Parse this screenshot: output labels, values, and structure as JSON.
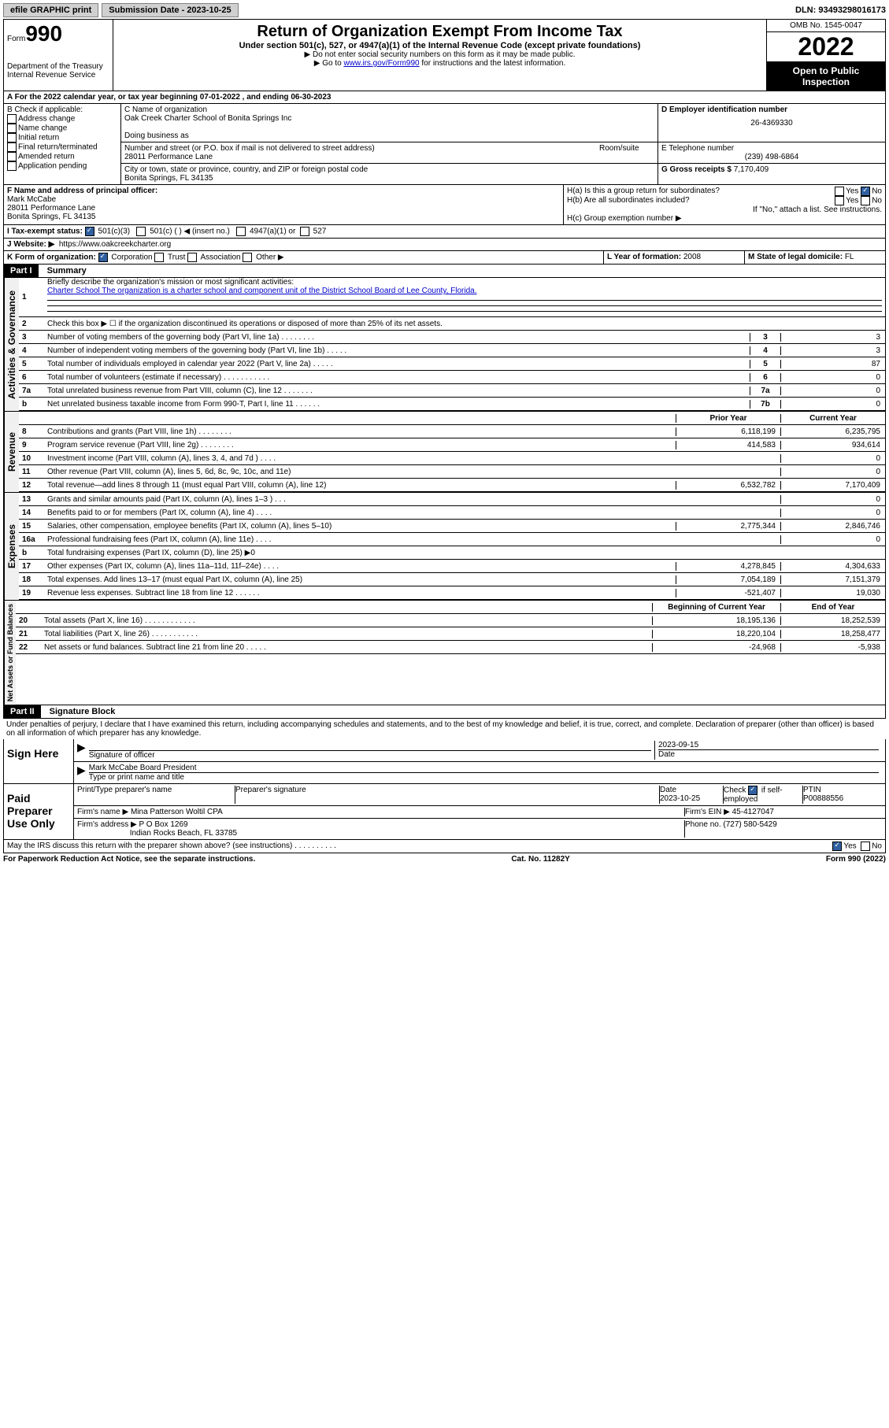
{
  "top": {
    "efile": "efile GRAPHIC print",
    "sub_label": "Submission Date - 2023-10-25",
    "dln": "DLN: 93493298016173"
  },
  "header": {
    "form_label": "Form",
    "form_num": "990",
    "dept": "Department of the Treasury Internal Revenue Service",
    "title": "Return of Organization Exempt From Income Tax",
    "sub": "Under section 501(c), 527, or 4947(a)(1) of the Internal Revenue Code (except private foundations)",
    "note1": "▶ Do not enter social security numbers on this form as it may be made public.",
    "note2_pre": "▶ Go to ",
    "note2_link": "www.irs.gov/Form990",
    "note2_post": " for instructions and the latest information.",
    "omb": "OMB No. 1545-0047",
    "year": "2022",
    "open": "Open to Public Inspection"
  },
  "row_a": "A For the 2022 calendar year, or tax year beginning 07-01-2022    , and ending 06-30-2023",
  "b": {
    "label": "B Check if applicable:",
    "opts": [
      "Address change",
      "Name change",
      "Initial return",
      "Final return/terminated",
      "Amended return",
      "Application pending"
    ]
  },
  "c": {
    "name_label": "C Name of organization",
    "name": "Oak Creek Charter School of Bonita Springs Inc",
    "dba_label": "Doing business as",
    "addr_label": "Number and street (or P.O. box if mail is not delivered to street address)",
    "room": "Room/suite",
    "addr": "28011 Performance Lane",
    "city_label": "City or town, state or province, country, and ZIP or foreign postal code",
    "city": "Bonita Springs, FL  34135"
  },
  "d": {
    "label": "D Employer identification number",
    "val": "26-4369330"
  },
  "e": {
    "label": "E Telephone number",
    "val": "(239) 498-6864"
  },
  "g": {
    "label": "G Gross receipts $",
    "val": "7,170,409"
  },
  "f": {
    "label": "F Name and address of principal officer:",
    "name": "Mark McCabe",
    "addr1": "28011 Performance Lane",
    "addr2": "Bonita Springs, FL  34135"
  },
  "h": {
    "a": "H(a)  Is this a group return for subordinates?",
    "b": "H(b)  Are all subordinates included?",
    "b_note": "If \"No,\" attach a list. See instructions.",
    "c": "H(c)  Group exemption number ▶"
  },
  "i": {
    "label": "I    Tax-exempt status:",
    "o1": "501(c)(3)",
    "o2": "501(c) (  ) ◀ (insert no.)",
    "o3": "4947(a)(1) or",
    "o4": "527"
  },
  "j": {
    "label": "J   Website: ▶",
    "val": "https://www.oakcreekcharter.org"
  },
  "k": {
    "label": "K Form of organization:",
    "o1": "Corporation",
    "o2": "Trust",
    "o3": "Association",
    "o4": "Other ▶"
  },
  "l": {
    "label": "L Year of formation:",
    "val": "2008"
  },
  "m": {
    "label": "M State of legal domicile:",
    "val": "FL"
  },
  "part1": {
    "header": "Part I",
    "title": "Summary",
    "side_gov": "Activities & Governance",
    "side_rev": "Revenue",
    "side_exp": "Expenses",
    "side_net": "Net Assets or Fund Balances",
    "q1_label": "Briefly describe the organization's mission or most significant activities:",
    "q1_text": "Charter School The organization is a charter school and component unit of the District School Board of Lee County, Florida.",
    "q2": "Check this box ▶ ☐  if the organization discontinued its operations or disposed of more than 25% of its net assets.",
    "lines_gov": [
      {
        "n": "3",
        "d": "Number of voting members of the governing body (Part VI, line 1a)   .    .    .    .    .    .    .    .",
        "box": "3",
        "v": "3"
      },
      {
        "n": "4",
        "d": "Number of independent voting members of the governing body (Part VI, line 1b)  .    .    .    .    .",
        "box": "4",
        "v": "3"
      },
      {
        "n": "5",
        "d": "Total number of individuals employed in calendar year 2022 (Part V, line 2a)   .    .    .    .    .",
        "box": "5",
        "v": "87"
      },
      {
        "n": "6",
        "d": "Total number of volunteers (estimate if necessary)   .    .    .    .    .    .    .    .    .    .    .",
        "box": "6",
        "v": "0"
      },
      {
        "n": "7a",
        "d": "Total unrelated business revenue from Part VIII, column (C), line 12  .    .    .    .    .    .    .",
        "box": "7a",
        "v": "0"
      },
      {
        "n": "b",
        "d": "Net unrelated business taxable income from Form 990-T, Part I, line 11   .    .    .    .    .    .",
        "box": "7b",
        "v": "0"
      }
    ],
    "col_head1": "Prior Year",
    "col_head2": "Current Year",
    "lines_rev": [
      {
        "n": "8",
        "d": "Contributions and grants (Part VIII, line 1h)   .    .    .    .    .    .    .    .",
        "p": "6,118,199",
        "c": "6,235,795"
      },
      {
        "n": "9",
        "d": "Program service revenue (Part VIII, line 2g)   .    .    .    .    .    .    .    .",
        "p": "414,583",
        "c": "934,614"
      },
      {
        "n": "10",
        "d": "Investment income (Part VIII, column (A), lines 3, 4, and 7d )  .    .    .    .",
        "p": "",
        "c": "0"
      },
      {
        "n": "11",
        "d": "Other revenue (Part VIII, column (A), lines 5, 6d, 8c, 9c, 10c, and 11e)",
        "p": "",
        "c": "0"
      },
      {
        "n": "12",
        "d": "Total revenue—add lines 8 through 11 (must equal Part VIII, column (A), line 12)",
        "p": "6,532,782",
        "c": "7,170,409"
      }
    ],
    "lines_exp": [
      {
        "n": "13",
        "d": "Grants and similar amounts paid (Part IX, column (A), lines 1–3 )  .    .    .",
        "p": "",
        "c": "0"
      },
      {
        "n": "14",
        "d": "Benefits paid to or for members (Part IX, column (A), line 4)  .    .    .    .",
        "p": "",
        "c": "0"
      },
      {
        "n": "15",
        "d": "Salaries, other compensation, employee benefits (Part IX, column (A), lines 5–10)",
        "p": "2,775,344",
        "c": "2,846,746"
      },
      {
        "n": "16a",
        "d": "Professional fundraising fees (Part IX, column (A), line 11e)  .    .    .    .",
        "p": "",
        "c": "0"
      },
      {
        "n": "b",
        "d": "Total fundraising expenses (Part IX, column (D), line 25) ▶0",
        "p": "GREY",
        "c": "GREY"
      },
      {
        "n": "17",
        "d": "Other expenses (Part IX, column (A), lines 11a–11d, 11f–24e)  .    .    .    .",
        "p": "4,278,845",
        "c": "4,304,633"
      },
      {
        "n": "18",
        "d": "Total expenses. Add lines 13–17 (must equal Part IX, column (A), line 25)",
        "p": "7,054,189",
        "c": "7,151,379"
      },
      {
        "n": "19",
        "d": "Revenue less expenses. Subtract line 18 from line 12  .    .    .    .    .    .",
        "p": "-521,407",
        "c": "19,030"
      }
    ],
    "net_head1": "Beginning of Current Year",
    "net_head2": "End of Year",
    "lines_net": [
      {
        "n": "20",
        "d": "Total assets (Part X, line 16)  .    .    .    .    .    .    .    .    .    .    .    .",
        "p": "18,195,136",
        "c": "18,252,539"
      },
      {
        "n": "21",
        "d": "Total liabilities (Part X, line 26)   .    .    .    .    .    .    .    .    .    .    .",
        "p": "18,220,104",
        "c": "18,258,477"
      },
      {
        "n": "22",
        "d": "Net assets or fund balances. Subtract line 21 from line 20  .    .    .    .    .",
        "p": "-24,968",
        "c": "-5,938"
      }
    ]
  },
  "part2": {
    "header": "Part II",
    "title": "Signature Block",
    "decl": "Under penalties of perjury, I declare that I have examined this return, including accompanying schedules and statements, and to the best of my knowledge and belief, it is true, correct, and complete. Declaration of preparer (other than officer) is based on all information of which preparer has any knowledge.",
    "sign_here": "Sign Here",
    "sig_officer": "Signature of officer",
    "sig_date": "2023-09-15",
    "sig_date_label": "Date",
    "sig_name": "Mark McCabe  Board President",
    "sig_name_label": "Type or print name and title",
    "paid": "Paid Preparer Use Only",
    "prep_name_label": "Print/Type preparer's name",
    "prep_sig_label": "Preparer's signature",
    "prep_date_label": "Date",
    "prep_date": "2023-10-25",
    "prep_check": "Check ☑ if self-employed",
    "ptin_label": "PTIN",
    "ptin": "P00888556",
    "firm_name_label": "Firm's name    ▶",
    "firm_name": "Mina Patterson Woltil CPA",
    "firm_ein_label": "Firm's EIN ▶",
    "firm_ein": "45-4127047",
    "firm_addr_label": "Firm's address ▶",
    "firm_addr1": "P O Box 1269",
    "firm_addr2": "Indian Rocks Beach, FL  33785",
    "firm_phone_label": "Phone no.",
    "firm_phone": "(727) 580-5429",
    "discuss": "May the IRS discuss this return with the preparer shown above? (see instructions)   .    .    .    .    .    .    .    .    .    ."
  },
  "footer": {
    "left": "For Paperwork Reduction Act Notice, see the separate instructions.",
    "mid": "Cat. No. 11282Y",
    "right": "Form 990 (2022)"
  },
  "yes": "Yes",
  "no": "No"
}
